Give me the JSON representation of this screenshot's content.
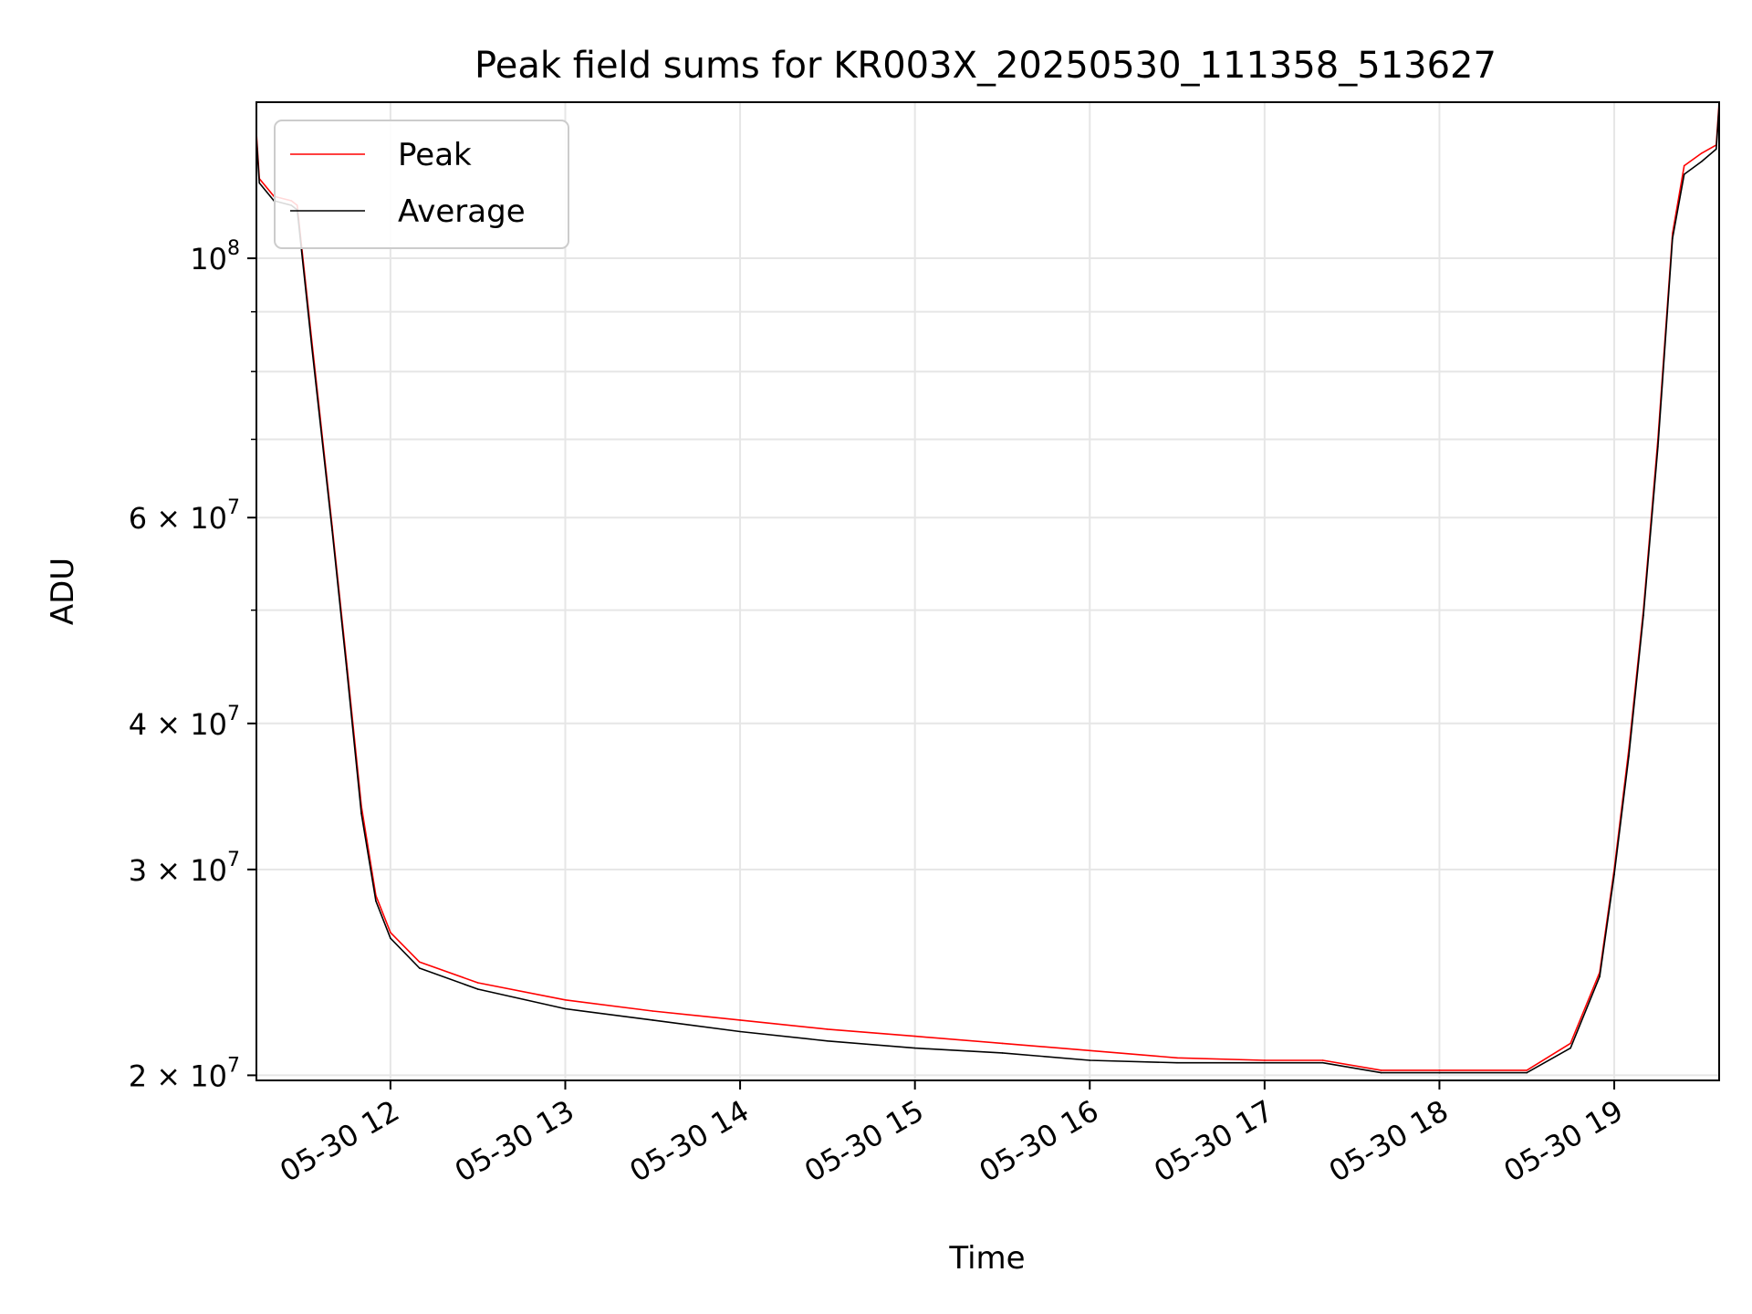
{
  "colors": {
    "peak": "#ff0000",
    "average": "#000000",
    "grid": "#e6e6e6",
    "frame": "#000000"
  },
  "chart_data": {
    "type": "line",
    "title": "Peak field sums for KR003X_20250530_111358_513627",
    "xlabel": "Time",
    "ylabel": "ADU",
    "yscale": "log",
    "xlim": [
      "2025-05-30 11:14",
      "2025-05-30 19:36"
    ],
    "ylim": [
      19800000,
      136000000
    ],
    "grid": true,
    "legend_position": "upper left",
    "x_ticks": [
      {
        "time": "2025-05-30 12:00",
        "label": "05-30 12"
      },
      {
        "time": "2025-05-30 13:00",
        "label": "05-30 13"
      },
      {
        "time": "2025-05-30 14:00",
        "label": "05-30 14"
      },
      {
        "time": "2025-05-30 15:00",
        "label": "05-30 15"
      },
      {
        "time": "2025-05-30 16:00",
        "label": "05-30 16"
      },
      {
        "time": "2025-05-30 17:00",
        "label": "05-30 17"
      },
      {
        "time": "2025-05-30 18:00",
        "label": "05-30 18"
      },
      {
        "time": "2025-05-30 19:00",
        "label": "05-30 19"
      }
    ],
    "y_ticks": [
      {
        "value": 100000000,
        "base": "10",
        "exp": "8"
      },
      {
        "value": 60000000,
        "base": "6 × 10",
        "exp": "7"
      },
      {
        "value": 40000000,
        "base": "4 × 10",
        "exp": "7"
      },
      {
        "value": 30000000,
        "base": "3 × 10",
        "exp": "7"
      },
      {
        "value": 20000000,
        "base": "2 × 10",
        "exp": "7"
      }
    ],
    "y_minor_ticks": [
      50000000,
      70000000,
      80000000,
      90000000
    ],
    "series": [
      {
        "name": "Peak",
        "color": "#ff0000",
        "x": [
          "2025-05-30 11:14",
          "2025-05-30 11:15",
          "2025-05-30 11:20",
          "2025-05-30 11:26",
          "2025-05-30 11:28",
          "2025-05-30 11:33",
          "2025-05-30 11:40",
          "2025-05-30 11:45",
          "2025-05-30 11:50",
          "2025-05-30 11:55",
          "2025-05-30 12:00",
          "2025-05-30 12:10",
          "2025-05-30 12:30",
          "2025-05-30 13:00",
          "2025-05-30 13:30",
          "2025-05-30 14:00",
          "2025-05-30 14:30",
          "2025-05-30 15:00",
          "2025-05-30 15:30",
          "2025-05-30 16:00",
          "2025-05-30 16:30",
          "2025-05-30 17:00",
          "2025-05-30 17:20",
          "2025-05-30 17:40",
          "2025-05-30 18:00",
          "2025-05-30 18:30",
          "2025-05-30 18:45",
          "2025-05-30 18:55",
          "2025-05-30 19:00",
          "2025-05-30 19:05",
          "2025-05-30 19:10",
          "2025-05-30 19:15",
          "2025-05-30 19:20",
          "2025-05-30 19:24",
          "2025-05-30 19:30",
          "2025-05-30 19:35",
          "2025-05-30 19:36"
        ],
        "values": [
          128000000,
          117000000,
          113000000,
          112000000,
          111000000,
          85000000,
          59000000,
          45000000,
          34000000,
          28500000,
          26500000,
          25000000,
          24000000,
          23200000,
          22700000,
          22300000,
          21900000,
          21600000,
          21300000,
          21000000,
          20700000,
          20600000,
          20600000,
          20200000,
          20200000,
          20200000,
          21300000,
          24500000,
          30000000,
          38000000,
          50000000,
          70000000,
          105000000,
          120000000,
          123000000,
          125000000,
          136000000
        ]
      },
      {
        "name": "Average",
        "color": "#000000",
        "x": [
          "2025-05-30 11:14",
          "2025-05-30 11:15",
          "2025-05-30 11:20",
          "2025-05-30 11:26",
          "2025-05-30 11:28",
          "2025-05-30 11:33",
          "2025-05-30 11:40",
          "2025-05-30 11:45",
          "2025-05-30 11:50",
          "2025-05-30 11:55",
          "2025-05-30 12:00",
          "2025-05-30 12:10",
          "2025-05-30 12:30",
          "2025-05-30 13:00",
          "2025-05-30 13:30",
          "2025-05-30 14:00",
          "2025-05-30 14:30",
          "2025-05-30 15:00",
          "2025-05-30 15:30",
          "2025-05-30 16:00",
          "2025-05-30 16:30",
          "2025-05-30 17:00",
          "2025-05-30 17:20",
          "2025-05-30 17:40",
          "2025-05-30 18:00",
          "2025-05-30 18:30",
          "2025-05-30 18:45",
          "2025-05-30 18:55",
          "2025-05-30 19:00",
          "2025-05-30 19:05",
          "2025-05-30 19:10",
          "2025-05-30 19:15",
          "2025-05-30 19:20",
          "2025-05-30 19:24",
          "2025-05-30 19:30",
          "2025-05-30 19:35",
          "2025-05-30 19:36"
        ],
        "values": [
          127000000,
          116000000,
          112000000,
          111000000,
          110000000,
          84000000,
          58500000,
          44500000,
          33500000,
          28200000,
          26200000,
          24700000,
          23700000,
          22800000,
          22300000,
          21800000,
          21400000,
          21100000,
          20900000,
          20600000,
          20500000,
          20500000,
          20500000,
          20100000,
          20100000,
          20100000,
          21100000,
          24300000,
          29700000,
          37500000,
          49500000,
          69000000,
          104000000,
          118000000,
          121000000,
          124000000,
          135000000
        ]
      }
    ]
  }
}
